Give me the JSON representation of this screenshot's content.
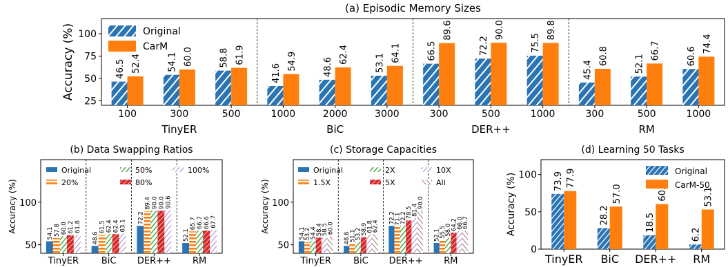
{
  "colors": {
    "original": "#2a74b4",
    "carm": "#ff7f0e",
    "orange": "#ff7f0e",
    "green": "#2ca02c",
    "red": "#d62728",
    "purple": "#9467bd",
    "brown": "#8c564b"
  },
  "chart_data": [
    {
      "type": "bar",
      "title": "(a) Episodic Memory Sizes",
      "ylabel": "Accuracy (%)",
      "ylim": [
        20,
        117
      ],
      "yticks": [
        25,
        50,
        75,
        100
      ],
      "legend": [
        "Original",
        "CarM"
      ],
      "legend_position": "top-left",
      "groups": [
        {
          "name": "TinyER",
          "categories": [
            "100",
            "300",
            "500"
          ],
          "series": [
            {
              "name": "Original",
              "values": [
                46.5,
                54.1,
                58.8
              ]
            },
            {
              "name": "CarM",
              "values": [
                52.4,
                60.0,
                61.9
              ]
            }
          ]
        },
        {
          "name": "BiC",
          "categories": [
            "1000",
            "2000",
            "3000"
          ],
          "series": [
            {
              "name": "Original",
              "values": [
                41.6,
                48.6,
                53.1
              ]
            },
            {
              "name": "CarM",
              "values": [
                54.9,
                62.4,
                64.1
              ]
            }
          ]
        },
        {
          "name": "DER++",
          "categories": [
            "300",
            "500",
            "1000"
          ],
          "series": [
            {
              "name": "Original",
              "values": [
                66.5,
                72.2,
                75.5
              ]
            },
            {
              "name": "CarM",
              "values": [
                89.6,
                90.0,
                89.8
              ]
            }
          ]
        },
        {
          "name": "RM",
          "categories": [
            "300",
            "500",
            "1000"
          ],
          "series": [
            {
              "name": "Original",
              "values": [
                45.4,
                52.1,
                60.6
              ]
            },
            {
              "name": "CarM",
              "values": [
                60.8,
                66.7,
                74.4
              ]
            }
          ]
        }
      ],
      "value_labels": {
        "TinyER": [
          [
            "46.5",
            "52.4"
          ],
          [
            "54.1",
            "60.0"
          ],
          [
            "58.8",
            "61.9"
          ]
        ],
        "BiC": [
          [
            "41.6",
            "54.9"
          ],
          [
            "48.6",
            "62.4"
          ],
          [
            "53.1",
            "64.1"
          ]
        ],
        "DER++": [
          [
            "66.5",
            "89.6"
          ],
          [
            "72.2",
            "90.0"
          ],
          [
            "75.5",
            "89.8"
          ]
        ],
        "RM": [
          [
            "45.4",
            "60.8"
          ],
          [
            "52.1",
            "66.7"
          ],
          [
            "60.6",
            "74.4"
          ]
        ]
      }
    },
    {
      "type": "bar",
      "title": "(b) Data Swapping Ratios",
      "ylabel": "Accuracy (%)",
      "ylim": [
        40,
        150
      ],
      "yticks": [
        50,
        100
      ],
      "legend": [
        "Original",
        "20%",
        "50%",
        "80%",
        "100%"
      ],
      "categories": [
        "TinyER",
        "BiC",
        "DER++",
        "RM"
      ],
      "series": [
        {
          "name": "Original",
          "values": [
            54.1,
            48.6,
            72.2,
            52.1
          ]
        },
        {
          "name": "20%",
          "values": [
            57.8,
            61.5,
            89.4,
            65.7
          ]
        },
        {
          "name": "50%",
          "values": [
            60.0,
            62.4,
            90.0,
            66.7
          ]
        },
        {
          "name": "80%",
          "values": [
            61.2,
            62.4,
            90.0,
            66.6
          ]
        },
        {
          "name": "100%",
          "values": [
            61.8,
            63.1,
            90.6,
            67.7
          ]
        }
      ],
      "value_labels": [
        [
          "54.1",
          "57.8",
          "60.0",
          "61.2",
          "61.8"
        ],
        [
          "48.6",
          "61.5",
          "62.4",
          "62.4",
          "63.1"
        ],
        [
          "72.2",
          "89.4",
          "90.0",
          "90.0",
          "90.6"
        ],
        [
          "52.1",
          "65.7",
          "66.7",
          "66.6",
          "67.7"
        ]
      ]
    },
    {
      "type": "bar",
      "title": "(c) Storage Capacities",
      "ylabel": "Accuracy (%)",
      "ylim": [
        40,
        150
      ],
      "yticks": [
        50,
        100
      ],
      "legend": [
        "Original",
        "1.5X",
        "2X",
        "5X",
        "10X",
        "All"
      ],
      "categories": [
        "TinyER",
        "BiC",
        "DER++",
        "RM"
      ],
      "series": [
        {
          "name": "Original",
          "values": [
            54.1,
            48.6,
            72.2,
            52.1
          ]
        },
        {
          "name": "1.5X",
          "values": [
            53.2,
            51.1,
            71.1,
            55.5
          ]
        },
        {
          "name": "2X",
          "values": [
            54.4,
            53.2,
            72.2,
            58.0
          ]
        },
        {
          "name": "5X",
          "values": [
            58.4,
            58.9,
            78.5,
            64.2
          ]
        },
        {
          "name": "10X",
          "values": [
            58.5,
            61.8,
            81.4,
            66.0
          ]
        },
        {
          "name": "All",
          "values": [
            60.0,
            62.4,
            90.0,
            66.7
          ]
        }
      ],
      "value_labels": [
        [
          "54.1",
          "53.2",
          "54.4",
          "58.4",
          "58.5",
          "60.0"
        ],
        [
          "48.6",
          "51.1",
          "53.2",
          "58.9",
          "61.8",
          "62.4"
        ],
        [
          "72.2",
          "71.1",
          "72.2",
          "78.5",
          "81.4",
          "90.0"
        ],
        [
          "52.1",
          "55.5",
          "58.0",
          "64.2",
          "66.0",
          "66.7"
        ]
      ]
    },
    {
      "type": "bar",
      "title": "(d) Learning 50 Tasks",
      "ylabel": "Accuracy (%)",
      "ylim": [
        0,
        120
      ],
      "yticks": [
        0,
        50,
        100
      ],
      "legend": [
        "Original",
        "CarM-50"
      ],
      "legend_position": "top-right",
      "categories": [
        "TinyER",
        "BiC",
        "DER++",
        "RM"
      ],
      "series": [
        {
          "name": "Original",
          "values": [
            73.9,
            28.2,
            18.5,
            6.2
          ]
        },
        {
          "name": "CarM-50",
          "values": [
            77.9,
            57.0,
            60.4,
            53.1
          ]
        }
      ],
      "value_labels": [
        [
          "73.9",
          "77.9"
        ],
        [
          "28.2",
          "57.0"
        ],
        [
          "18.5",
          "60.4"
        ],
        [
          "6.2",
          "53.1"
        ]
      ]
    }
  ]
}
